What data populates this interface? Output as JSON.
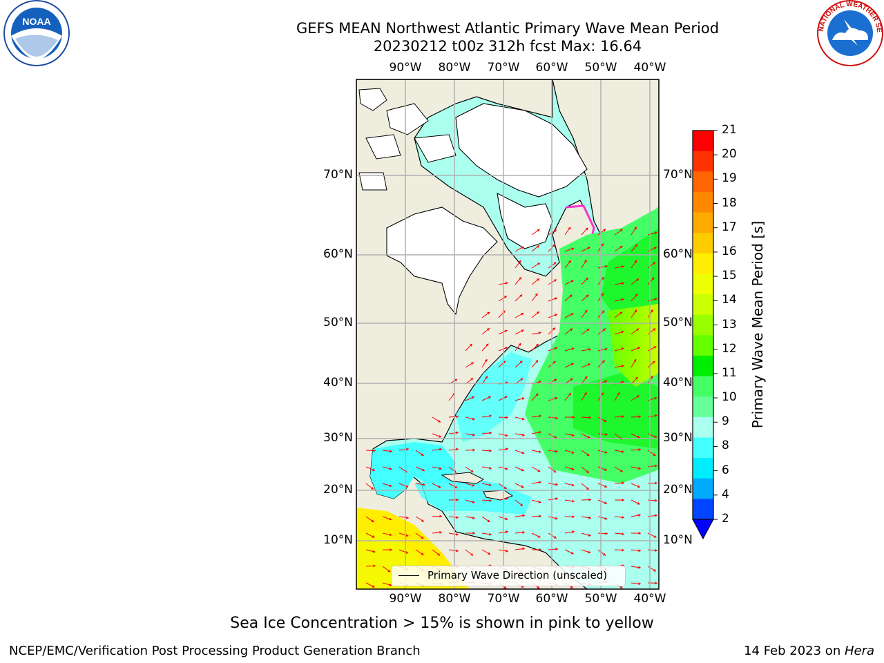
{
  "title": {
    "line1": "GEFS MEAN Northwest Atlantic Primary Wave Mean Period",
    "line2": "20230212 t00z 312h fcst   Max: 16.64"
  },
  "map": {
    "lon_ticks": [
      "90°W",
      "80°W",
      "70°W",
      "60°W",
      "50°W",
      "40°W"
    ],
    "lat_ticks": [
      "70°N",
      "60°N",
      "50°N",
      "40°N",
      "30°N",
      "20°N",
      "10°N"
    ],
    "legend_label": "Primary Wave Direction (unscaled)",
    "colors": {
      "land": "#efedde",
      "ice_region": "#ffffff",
      "grid": "#b0b0b0",
      "arrows": "#ff0000"
    }
  },
  "colorbar": {
    "label": "Primary Wave Mean Period [s]",
    "ticks": [
      "21",
      "20",
      "19",
      "18",
      "17",
      "16",
      "15",
      "14",
      "13",
      "12",
      "11",
      "10",
      "9",
      "8",
      "6",
      "4",
      "2"
    ],
    "colors": [
      "#ff0000",
      "#ff3300",
      "#ff6600",
      "#ff8800",
      "#ffaa00",
      "#ffcc00",
      "#ffee00",
      "#eeff00",
      "#ccff00",
      "#99ff00",
      "#66ff00",
      "#00ee00",
      "#44ff66",
      "#66ff99",
      "#aaffee",
      "#44ffff",
      "#00eeff",
      "#00aaff",
      "#0044ff"
    ],
    "under_color": "#0000ff"
  },
  "logos": {
    "noaa_text": "NOAA",
    "nws_text": "NATIONAL WEATHER SERVICE"
  },
  "footer": {
    "note": "Sea Ice Concentration > 15% is shown in pink to yellow",
    "credit": "NCEP/EMC/Verification Post Processing Product Generation Branch",
    "date": "14 Feb 2023 on ",
    "machine": "Hera"
  }
}
